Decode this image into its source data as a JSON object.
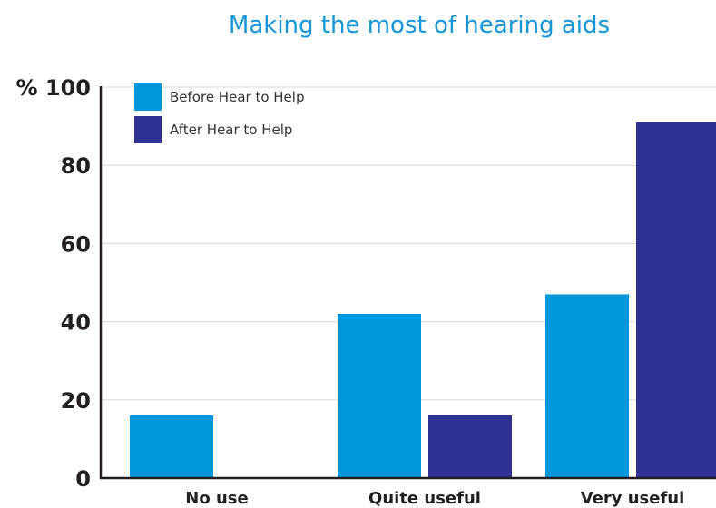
{
  "chart_data": {
    "type": "bar",
    "title": "Making the most of hearing aids",
    "ylabel": "%",
    "xlabel": "",
    "categories": [
      "No use",
      "Quite useful",
      "Very useful"
    ],
    "series": [
      {
        "name": "Before Hear to Help",
        "values": [
          16,
          42,
          47
        ],
        "color": "#0098db"
      },
      {
        "name": "After Hear to Help",
        "values": [
          0,
          16,
          91
        ],
        "color": "#2e3192"
      }
    ],
    "ylim": [
      0,
      100
    ],
    "yticks": [
      0,
      20,
      40,
      60,
      80,
      100
    ],
    "ytick_labels": [
      "0",
      "20",
      "40",
      "60",
      "80",
      "% 100"
    ],
    "grid": true,
    "legend_position": "top-left"
  }
}
